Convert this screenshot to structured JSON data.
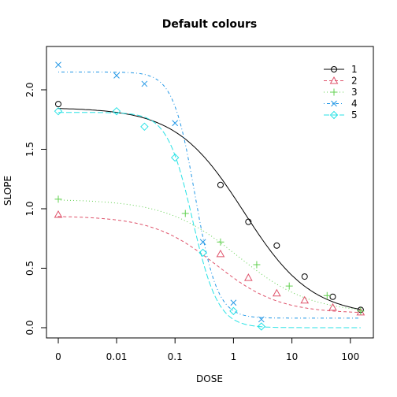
{
  "chart_data": {
    "type": "scatter",
    "title": "Default colours",
    "xlabel": "DOSE",
    "ylabel": "SLOPE",
    "x_scale": "log (0 plotted at left edge)",
    "x_ticks": [
      "0",
      "0.01",
      "0.1",
      "1",
      "10",
      "100"
    ],
    "y_ticks": [
      "0.0",
      "0.5",
      "1.0",
      "1.5",
      "2.0"
    ],
    "ylim": [
      -0.05,
      2.25
    ],
    "grid": false,
    "legend": "top-right",
    "series": [
      {
        "name": "1",
        "color": "#000000",
        "marker": "circle",
        "line": "solid",
        "x": [
          0,
          0.01,
          0.03,
          0.1,
          0.6,
          1.8,
          5.5,
          16.5,
          50,
          150
        ],
        "y": [
          1.88,
          null,
          null,
          null,
          1.2,
          0.89,
          0.69,
          0.43,
          0.26,
          0.15
        ],
        "fit": {
          "top": 1.85,
          "bottom": 0.1,
          "ec50": 1.5,
          "hill": 0.75
        }
      },
      {
        "name": "2",
        "color": "#DF536B",
        "marker": "triangle",
        "line": "dashed",
        "x": [
          0,
          0.6,
          1.8,
          5.5,
          16.5,
          50,
          150
        ],
        "y": [
          0.95,
          0.62,
          0.42,
          0.29,
          0.23,
          0.17,
          0.13
        ],
        "fit": {
          "top": 0.94,
          "bottom": 0.12,
          "ec50": 0.5,
          "hill": 0.8
        }
      },
      {
        "name": "3",
        "color": "#61D04F",
        "marker": "plus",
        "line": "dotted",
        "x": [
          0,
          0.15,
          0.6,
          2.5,
          9,
          40,
          150
        ],
        "y": [
          1.08,
          0.96,
          0.72,
          0.53,
          0.35,
          0.27,
          0.14
        ],
        "fit": {
          "top": 1.08,
          "bottom": 0.12,
          "ec50": 1.2,
          "hill": 0.7
        }
      },
      {
        "name": "4",
        "color": "#2297E6",
        "marker": "cross",
        "line": "dotdash",
        "x": [
          0,
          0.01,
          0.03,
          0.1,
          0.3,
          1,
          3
        ],
        "y": [
          2.21,
          2.12,
          2.05,
          1.72,
          0.72,
          0.21,
          0.07
        ],
        "fit": {
          "top": 2.15,
          "bottom": 0.08,
          "ec50": 0.22,
          "hill": 2.3
        }
      },
      {
        "name": "5",
        "color": "#28E2E5",
        "marker": "diamond",
        "line": "longdash",
        "x": [
          0,
          0.01,
          0.03,
          0.1,
          0.3,
          1,
          3
        ],
        "y": [
          1.82,
          1.82,
          1.69,
          1.43,
          0.63,
          0.14,
          0.01
        ],
        "fit": {
          "top": 1.81,
          "bottom": 0.0,
          "ec50": 0.2,
          "hill": 2.0
        }
      }
    ]
  }
}
